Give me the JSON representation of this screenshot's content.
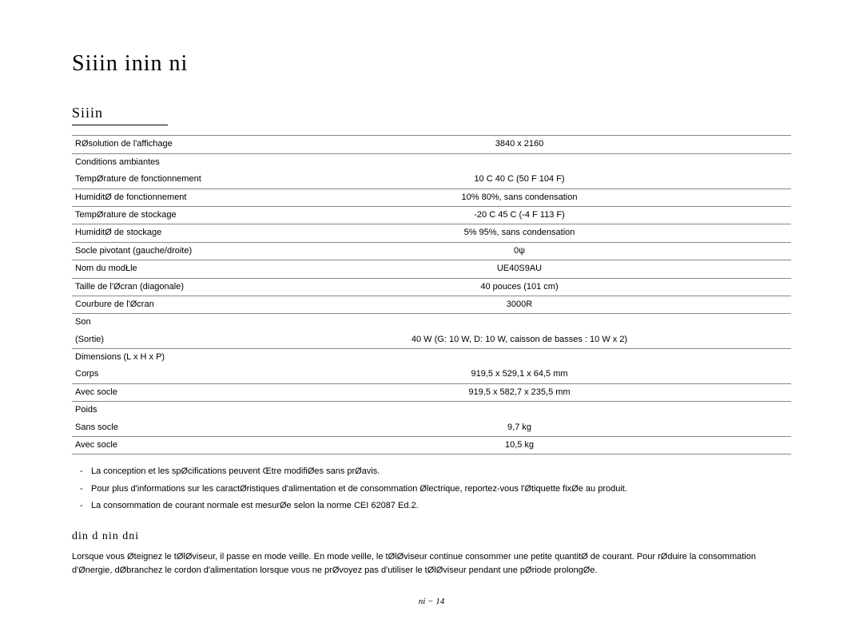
{
  "headings": {
    "main": "Siiin  inin ni",
    "sub": "Siiin",
    "section_sub": "din d  nin dni"
  },
  "spec_rows": [
    {
      "label": "RØsolution de l'affichage",
      "value": "3840 x 2160",
      "border": true
    },
    {
      "label": "Conditions ambiantes",
      "value": "",
      "border": false
    },
    {
      "label": "TempØrature de fonctionnement",
      "value": "10 C   40 C (50 F   104 F)",
      "border": true
    },
    {
      "label": "HumiditØ de fonctionnement",
      "value": "10%   80%, sans condensation",
      "border": true
    },
    {
      "label": "TempØrature de stockage",
      "value": "-20 C   45 C (-4 F   113 F)",
      "border": true
    },
    {
      "label": "HumiditØ de stockage",
      "value": "5%   95%, sans condensation",
      "border": true
    },
    {
      "label": "Socle pivotant (gauche/droite)",
      "value": "0ψ",
      "border": true
    },
    {
      "label": "Nom du modŁle",
      "value": "UE40S9AU",
      "border": true
    },
    {
      "label": "Taille de l'Øcran (diagonale)",
      "value": "40 pouces (101 cm)",
      "border": true
    },
    {
      "label": "Courbure de l'Øcran",
      "value": "3000R",
      "border": true
    },
    {
      "label": "Son",
      "value": "",
      "border": false
    },
    {
      "label": "(Sortie)",
      "value": "40 W (G: 10 W, D: 10 W, caisson de basses : 10 W x 2)",
      "border": true
    },
    {
      "label": "Dimensions (L x H x P)",
      "value": "",
      "border": false
    },
    {
      "label": "Corps",
      "value": "919,5 x 529,1 x 64,5 mm",
      "border": true
    },
    {
      "label": "Avec socle",
      "value": "919,5 x 582,7 x 235,5 mm",
      "border": true
    },
    {
      "label": "Poids",
      "value": "",
      "border": false
    },
    {
      "label": "Sans socle",
      "value": "9,7 kg",
      "border": true
    },
    {
      "label": "Avec socle",
      "value": "10,5 kg",
      "border": true
    }
  ],
  "notes": [
    "La conception et les spØcifications peuvent Œtre modifiØes sans prØavis.",
    "Pour plus d'informations sur les caractØristiques d'alimentation et de consommation Ølectrique, reportez-vous   l'Øtiquette fixØe au produit.",
    "La consommation de courant normale est mesurØe selon la norme CEI 62087 Ed.2."
  ],
  "body_text": "Lorsque vous Øteignez le tØlØviseur, il passe en mode veille. En mode veille, le tØlØviseur continue   consommer une petite quantitØ de courant. Pour rØduire la consommation d'Ønergie, dØbranchez le cordon d'alimentation lorsque vous ne prØvoyez pas d'utiliser le tØlØviseur pendant une pØriode prolongØe.",
  "footer": "ni − 14",
  "style": {
    "page_bg": "#ffffff",
    "text_color": "#000000",
    "border_color": "#888888",
    "body_font_size": 11,
    "heading_font_size": 28,
    "sub_heading_font_size": 18
  }
}
